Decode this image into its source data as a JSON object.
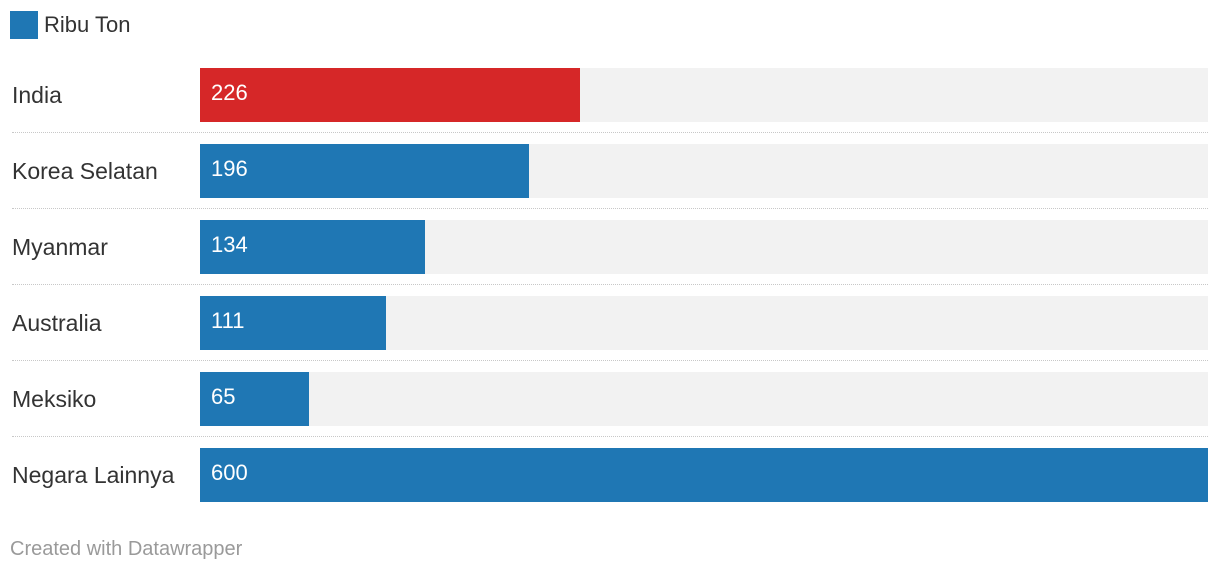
{
  "legend": {
    "label": "Ribu Ton",
    "color": "#1f77b4"
  },
  "credit": "Created with Datawrapper",
  "colors": {
    "highlight": "#d62728",
    "default": "#1f77b4",
    "track": "#f2f2f2"
  },
  "chart_data": {
    "type": "bar",
    "orientation": "horizontal",
    "categories": [
      "India",
      "Korea Selatan",
      "Myanmar",
      "Australia",
      "Meksiko",
      "Negara Lainnya"
    ],
    "series": [
      {
        "name": "Ribu Ton",
        "values": [
          226,
          196,
          134,
          111,
          65,
          600
        ]
      }
    ],
    "highlighted_category": "India",
    "xlim": [
      0,
      600
    ],
    "legend_position": "top-left",
    "grid": false
  }
}
